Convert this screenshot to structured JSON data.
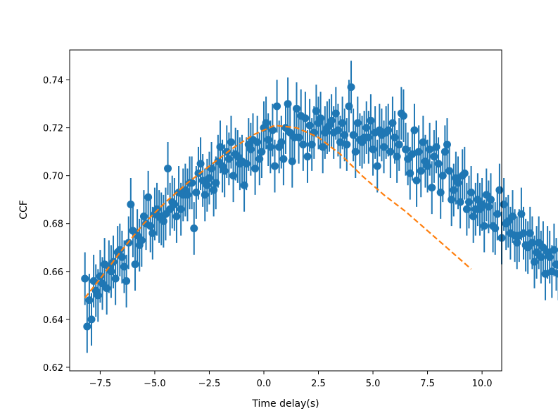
{
  "chart_data": {
    "type": "scatter",
    "xlabel": "Time delay(s)",
    "ylabel": "CCF",
    "xlim": [
      -8.9,
      10.9
    ],
    "ylim": [
      0.6185,
      0.7525
    ],
    "xticks": [
      -7.5,
      -5.0,
      -2.5,
      0.0,
      2.5,
      5.0,
      7.5,
      10.0
    ],
    "xtick_labels": [
      "−7.5",
      "−5.0",
      "−2.5",
      "0.0",
      "2.5",
      "5.0",
      "7.5",
      "10.0"
    ],
    "yticks": [
      0.62,
      0.64,
      0.66,
      0.68,
      0.7,
      0.72,
      0.74
    ],
    "ytick_labels": [
      "0.62",
      "0.64",
      "0.66",
      "0.68",
      "0.70",
      "0.72",
      "0.74"
    ],
    "grid": false,
    "colors": {
      "points": "#1f77b4",
      "fit": "#ff7f0e"
    },
    "series": [
      {
        "kind": "errorbar-scatter",
        "x_start": -8.2,
        "x_step": 0.1,
        "error": 0.011,
        "values": [
          0.657,
          0.637,
          0.648,
          0.64,
          0.656,
          0.652,
          0.65,
          0.658,
          0.655,
          0.663,
          0.653,
          0.662,
          0.66,
          0.664,
          0.657,
          0.668,
          0.669,
          0.666,
          0.662,
          0.656,
          0.672,
          0.688,
          0.677,
          0.663,
          0.675,
          0.671,
          0.673,
          0.683,
          0.68,
          0.691,
          0.679,
          0.676,
          0.684,
          0.686,
          0.683,
          0.682,
          0.681,
          0.684,
          0.703,
          0.686,
          0.689,
          0.688,
          0.683,
          0.693,
          0.686,
          0.692,
          0.694,
          0.692,
          0.697,
          0.697,
          0.678,
          0.693,
          0.701,
          0.705,
          0.698,
          0.692,
          0.696,
          0.699,
          0.703,
          0.694,
          0.697,
          0.706,
          0.712,
          0.704,
          0.702,
          0.71,
          0.707,
          0.714,
          0.7,
          0.709,
          0.708,
          0.705,
          0.706,
          0.696,
          0.705,
          0.713,
          0.711,
          0.715,
          0.703,
          0.714,
          0.707,
          0.71,
          0.72,
          0.722,
          0.715,
          0.712,
          0.719,
          0.704,
          0.729,
          0.712,
          0.714,
          0.707,
          0.72,
          0.73,
          0.718,
          0.706,
          0.716,
          0.728,
          0.716,
          0.725,
          0.713,
          0.724,
          0.708,
          0.721,
          0.713,
          0.718,
          0.727,
          0.722,
          0.724,
          0.712,
          0.718,
          0.72,
          0.721,
          0.723,
          0.718,
          0.726,
          0.719,
          0.714,
          0.722,
          0.717,
          0.713,
          0.729,
          0.737,
          0.717,
          0.71,
          0.722,
          0.715,
          0.714,
          0.716,
          0.72,
          0.716,
          0.723,
          0.711,
          0.718,
          0.704,
          0.719,
          0.717,
          0.712,
          0.718,
          0.719,
          0.71,
          0.722,
          0.716,
          0.708,
          0.713,
          0.726,
          0.725,
          0.711,
          0.707,
          0.701,
          0.709,
          0.719,
          0.698,
          0.71,
          0.702,
          0.714,
          0.706,
          0.704,
          0.711,
          0.695,
          0.708,
          0.712,
          0.705,
          0.693,
          0.7,
          0.71,
          0.713,
          0.702,
          0.69,
          0.694,
          0.699,
          0.697,
          0.689,
          0.7,
          0.701,
          0.686,
          0.689,
          0.693,
          0.683,
          0.686,
          0.69,
          0.686,
          0.688,
          0.679,
          0.692,
          0.687,
          0.69,
          0.679,
          0.678,
          0.684,
          0.694,
          0.674,
          0.688,
          0.68,
          0.681,
          0.676,
          0.683,
          0.675,
          0.672,
          0.675,
          0.684,
          0.676,
          0.671,
          0.67,
          0.676,
          0.672,
          0.664,
          0.668,
          0.672,
          0.666,
          0.67,
          0.659,
          0.668,
          0.666,
          0.66,
          0.669,
          0.663,
          0.659,
          0.662,
          0.657,
          0.661,
          0.656,
          0.66,
          0.654,
          0.651
        ]
      },
      {
        "kind": "fit-line",
        "style": "dashed",
        "x": [
          -8.2,
          -7.5,
          -6.5,
          -5.5,
          -4.5,
          -3.5,
          -2.5,
          -1.5,
          -0.5,
          0.5,
          1.5,
          2.5,
          3.5,
          4.5,
          5.5,
          6.5,
          7.5,
          8.5,
          9.5
        ],
        "y": [
          0.649,
          0.657,
          0.669,
          0.68,
          0.689,
          0.697,
          0.704,
          0.711,
          0.717,
          0.721,
          0.72,
          0.716,
          0.709,
          0.7,
          0.692,
          0.685,
          0.677,
          0.669,
          0.661
        ]
      }
    ]
  }
}
